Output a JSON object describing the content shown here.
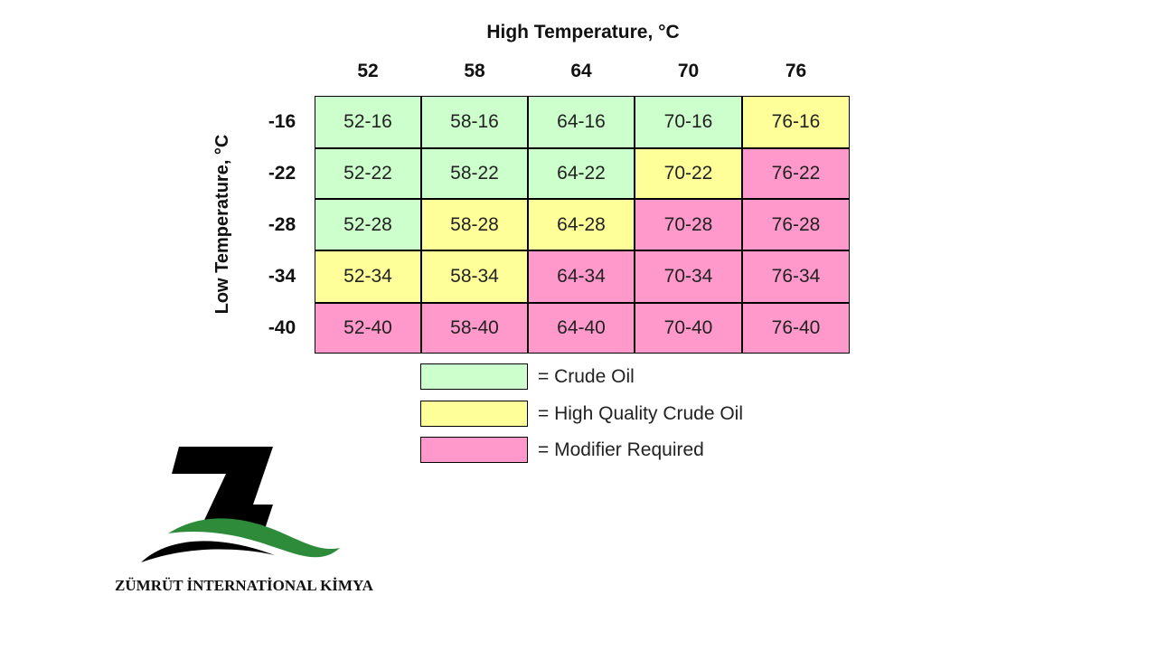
{
  "chart_data": {
    "type": "table",
    "title": "",
    "xlabel": "High Temperature, °C",
    "ylabel": "Low Temperature, °C",
    "columns": [
      "52",
      "58",
      "64",
      "70",
      "76"
    ],
    "rows": [
      "-16",
      "-22",
      "-28",
      "-34",
      "-40"
    ],
    "cells": [
      [
        {
          "label": "52-16",
          "category": "crude"
        },
        {
          "label": "58-16",
          "category": "crude"
        },
        {
          "label": "64-16",
          "category": "crude"
        },
        {
          "label": "70-16",
          "category": "crude"
        },
        {
          "label": "76-16",
          "category": "hq"
        }
      ],
      [
        {
          "label": "52-22",
          "category": "crude"
        },
        {
          "label": "58-22",
          "category": "crude"
        },
        {
          "label": "64-22",
          "category": "crude"
        },
        {
          "label": "70-22",
          "category": "hq"
        },
        {
          "label": "76-22",
          "category": "mod"
        }
      ],
      [
        {
          "label": "52-28",
          "category": "crude"
        },
        {
          "label": "58-28",
          "category": "hq"
        },
        {
          "label": "64-28",
          "category": "hq"
        },
        {
          "label": "70-28",
          "category": "mod"
        },
        {
          "label": "76-28",
          "category": "mod"
        }
      ],
      [
        {
          "label": "52-34",
          "category": "hq"
        },
        {
          "label": "58-34",
          "category": "hq"
        },
        {
          "label": "64-34",
          "category": "mod"
        },
        {
          "label": "70-34",
          "category": "mod"
        },
        {
          "label": "76-34",
          "category": "mod"
        }
      ],
      [
        {
          "label": "52-40",
          "category": "mod"
        },
        {
          "label": "58-40",
          "category": "mod"
        },
        {
          "label": "64-40",
          "category": "mod"
        },
        {
          "label": "70-40",
          "category": "mod"
        },
        {
          "label": "76-40",
          "category": "mod"
        }
      ]
    ],
    "legend": [
      {
        "key": "crude",
        "label": "= Crude Oil",
        "color": "#ccffcc"
      },
      {
        "key": "hq",
        "label": "= High Quality Crude Oil",
        "color": "#ffff99"
      },
      {
        "key": "mod",
        "label": "= Modifier Required",
        "color": "#ff99cc"
      }
    ]
  },
  "branding": {
    "company_name": "ZÜMRÜT İNTERNATİONAL KİMYA",
    "logo_icon": "zumrut-z-logo-icon",
    "logo_colors": {
      "letter": "#000000",
      "swoosh": "#2e8b3a"
    }
  }
}
